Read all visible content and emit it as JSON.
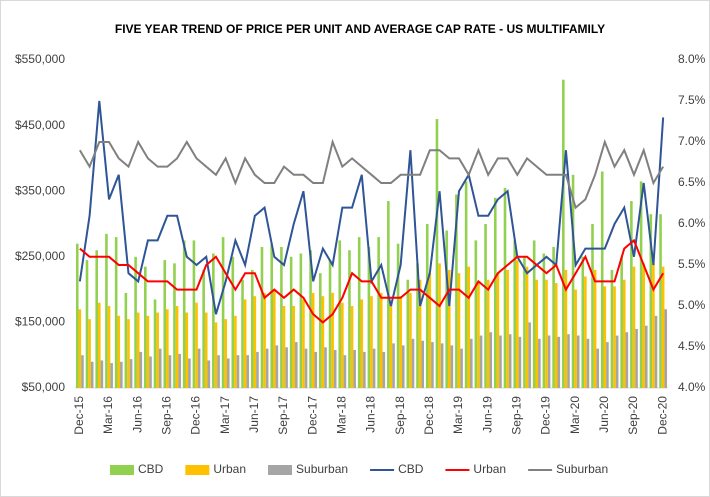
{
  "chart_data": {
    "type": "combo",
    "title": "FIVE YEAR TREND OF PRICE PER UNIT AND AVERAGE CAP RATE - US MULTIFAMILY",
    "categories": [
      "Dec-15",
      null,
      null,
      "Mar-16",
      null,
      null,
      "Jun-16",
      null,
      null,
      "Sep-16",
      null,
      null,
      "Dec-16",
      null,
      null,
      "Mar-17",
      null,
      null,
      "Jun-17",
      null,
      null,
      "Sep-17",
      null,
      null,
      "Dec-17",
      null,
      null,
      "Mar-18",
      null,
      null,
      "Jun-18",
      null,
      null,
      "Sep-18",
      null,
      null,
      "Dec-18",
      null,
      null,
      "Mar-19",
      null,
      null,
      "Jun-19",
      null,
      null,
      "Sep-19",
      null,
      null,
      "Dec-19",
      null,
      null,
      "Mar-20",
      null,
      null,
      "Jun-20",
      null,
      null,
      "Sep-20",
      null,
      null,
      "Dec-20"
    ],
    "ylim": [
      50000,
      550000
    ],
    "yticks": [
      {
        "value": 50000,
        "label": "$50,000"
      },
      {
        "value": 150000,
        "label": "$150,000"
      },
      {
        "value": 250000,
        "label": "$250,000"
      },
      {
        "value": 350000,
        "label": "$350,000"
      },
      {
        "value": 450000,
        "label": "$450,000"
      },
      {
        "value": 550000,
        "label": "$550,000"
      }
    ],
    "y2lim": [
      4.0,
      8.0
    ],
    "y2ticks": [
      {
        "value": 4.0,
        "label": "4.0%"
      },
      {
        "value": 4.5,
        "label": "4.5%"
      },
      {
        "value": 5.0,
        "label": "5.0%"
      },
      {
        "value": 5.5,
        "label": "5.5%"
      },
      {
        "value": 6.0,
        "label": "6.0%"
      },
      {
        "value": 6.5,
        "label": "6.5%"
      },
      {
        "value": 7.0,
        "label": "7.0%"
      },
      {
        "value": 7.5,
        "label": "7.5%"
      },
      {
        "value": 8.0,
        "label": "8.0%"
      }
    ],
    "grid": false,
    "legend": "bottom",
    "series": [
      {
        "name": "CBD",
        "type": "bar",
        "color": "#92d050",
        "values": [
          270000,
          245000,
          260000,
          285000,
          280000,
          195000,
          250000,
          235000,
          185000,
          245000,
          240000,
          275000,
          275000,
          230000,
          255000,
          280000,
          250000,
          215000,
          230000,
          265000,
          270000,
          265000,
          250000,
          255000,
          260000,
          225000,
          245000,
          275000,
          260000,
          280000,
          265000,
          280000,
          335000,
          270000,
          215000,
          240000,
          300000,
          460000,
          290000,
          345000,
          365000,
          275000,
          300000,
          340000,
          355000,
          275000,
          250000,
          275000,
          255000,
          265000,
          520000,
          375000,
          250000,
          300000,
          380000,
          230000,
          250000,
          335000,
          365000,
          315000,
          315000
        ]
      },
      {
        "name": "Urban",
        "type": "bar",
        "color": "#ffc000",
        "values": [
          170000,
          155000,
          180000,
          175000,
          160000,
          155000,
          165000,
          160000,
          165000,
          170000,
          175000,
          165000,
          180000,
          165000,
          150000,
          155000,
          160000,
          185000,
          190000,
          195000,
          200000,
          175000,
          175000,
          185000,
          195000,
          190000,
          195000,
          180000,
          175000,
          185000,
          190000,
          195000,
          180000,
          190000,
          195000,
          215000,
          225000,
          240000,
          230000,
          225000,
          235000,
          210000,
          215000,
          225000,
          230000,
          245000,
          235000,
          215000,
          215000,
          210000,
          230000,
          200000,
          220000,
          230000,
          205000,
          205000,
          215000,
          235000,
          240000,
          240000,
          235000
        ]
      },
      {
        "name": "Suburban",
        "type": "bar",
        "color": "#a5a5a5",
        "values": [
          100000,
          90000,
          92000,
          88000,
          90000,
          94000,
          105000,
          98000,
          110000,
          100000,
          102000,
          95000,
          110000,
          92000,
          100000,
          95000,
          100000,
          100000,
          105000,
          110000,
          115000,
          112000,
          120000,
          110000,
          105000,
          112000,
          108000,
          100000,
          108000,
          105000,
          110000,
          105000,
          118000,
          115000,
          125000,
          122000,
          120000,
          118000,
          115000,
          110000,
          125000,
          130000,
          135000,
          130000,
          132000,
          128000,
          150000,
          125000,
          130000,
          128000,
          132000,
          130000,
          125000,
          110000,
          120000,
          130000,
          135000,
          140000,
          145000,
          160000,
          170000
        ]
      },
      {
        "name": "CBD",
        "type": "line",
        "axis": "y2",
        "color": "#2f5597",
        "values": [
          5.3,
          6.1,
          7.5,
          6.3,
          6.6,
          5.4,
          5.3,
          5.8,
          5.8,
          6.1,
          6.1,
          5.6,
          5.5,
          5.6,
          4.9,
          5.3,
          5.8,
          5.5,
          6.1,
          6.2,
          5.6,
          5.5,
          6.0,
          6.4,
          5.3,
          5.7,
          5.5,
          6.2,
          6.2,
          6.6,
          5.3,
          5.5,
          5.0,
          5.5,
          6.9,
          5.0,
          5.4,
          6.4,
          5.0,
          6.4,
          6.6,
          6.1,
          6.1,
          6.3,
          6.4,
          5.6,
          5.4,
          5.5,
          5.6,
          5.5,
          6.9,
          5.5,
          5.7,
          5.7,
          5.7,
          6.0,
          6.2,
          5.6,
          6.5,
          5.5,
          7.3
        ]
      },
      {
        "name": "Urban",
        "type": "line",
        "axis": "y2",
        "color": "#ff0000",
        "values": [
          5.7,
          5.6,
          5.6,
          5.6,
          5.5,
          5.5,
          5.4,
          5.3,
          5.3,
          5.3,
          5.2,
          5.2,
          5.2,
          5.5,
          5.6,
          5.4,
          5.2,
          5.4,
          5.4,
          5.1,
          5.2,
          5.1,
          5.2,
          5.1,
          4.9,
          4.8,
          4.9,
          5.1,
          5.4,
          5.3,
          5.3,
          5.1,
          5.1,
          5.1,
          5.2,
          5.2,
          5.1,
          5.0,
          5.2,
          5.2,
          5.1,
          5.3,
          5.2,
          5.4,
          5.5,
          5.6,
          5.6,
          5.5,
          5.4,
          5.5,
          5.2,
          5.4,
          5.6,
          5.3,
          5.3,
          5.3,
          5.7,
          5.8,
          5.5,
          5.2,
          5.4
        ]
      },
      {
        "name": "Suburban",
        "type": "line",
        "axis": "y2",
        "color": "#808080",
        "values": [
          6.9,
          6.7,
          7.0,
          7.0,
          6.8,
          6.7,
          7.0,
          6.8,
          6.7,
          6.7,
          6.8,
          7.0,
          6.8,
          6.7,
          6.6,
          6.8,
          6.5,
          6.8,
          6.6,
          6.5,
          6.5,
          6.7,
          6.6,
          6.6,
          6.5,
          6.5,
          7.0,
          6.7,
          6.8,
          6.7,
          6.6,
          6.5,
          6.5,
          6.6,
          6.6,
          6.6,
          6.9,
          6.9,
          6.8,
          6.8,
          6.6,
          6.9,
          6.6,
          6.8,
          6.8,
          6.6,
          6.8,
          6.7,
          6.6,
          6.6,
          6.6,
          6.2,
          6.3,
          6.6,
          7.0,
          6.7,
          6.9,
          6.6,
          6.9,
          6.5,
          6.7
        ]
      }
    ]
  }
}
